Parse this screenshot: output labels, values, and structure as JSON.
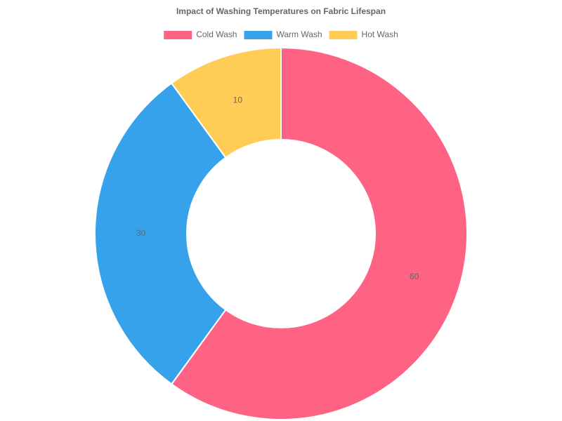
{
  "chart_data": {
    "type": "doughnut",
    "title": "Impact of Washing Temperatures on Fabric Lifespan",
    "categories": [
      "Cold Wash",
      "Warm Wash",
      "Hot Wash"
    ],
    "values": [
      60,
      30,
      10
    ],
    "colors": [
      "#ff6384",
      "#36a2eb",
      "#ffcd56"
    ],
    "legend": "top"
  }
}
